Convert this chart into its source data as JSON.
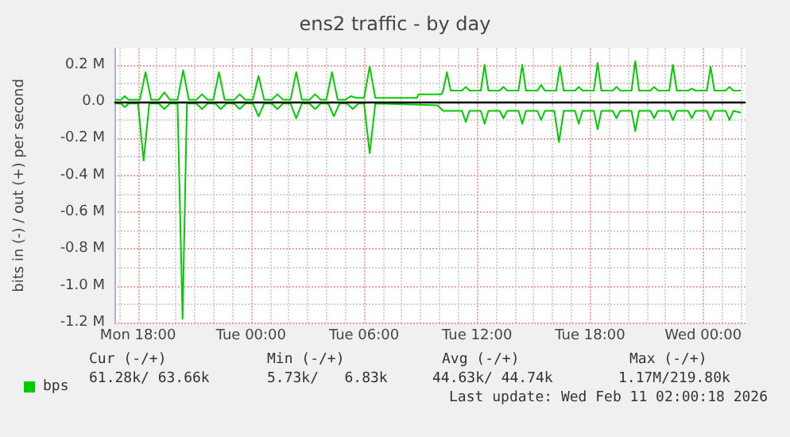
{
  "chart_data": {
    "type": "line",
    "title": "ens2 traffic - by day",
    "ylabel": "bits in (-) / out (+) per second",
    "xlim": [
      "2026-02-09T16:45",
      "2026-02-11T02:15"
    ],
    "ylim": [
      -1.2,
      0.29
    ],
    "xticks": [
      {
        "value": "2026-02-09T17:00",
        "label": null
      },
      {
        "value": "2026-02-09T18:00",
        "label": "Mon 18:00"
      },
      {
        "value": "2026-02-09T19:00",
        "label": null
      },
      {
        "value": "2026-02-09T20:00",
        "label": null
      },
      {
        "value": "2026-02-09T21:00",
        "label": null
      },
      {
        "value": "2026-02-09T22:00",
        "label": null
      },
      {
        "value": "2026-02-09T23:00",
        "label": null
      },
      {
        "value": "2026-02-10T00:00",
        "label": "Tue 00:00"
      },
      {
        "value": "2026-02-10T01:00",
        "label": null
      },
      {
        "value": "2026-02-10T02:00",
        "label": null
      },
      {
        "value": "2026-02-10T03:00",
        "label": null
      },
      {
        "value": "2026-02-10T04:00",
        "label": null
      },
      {
        "value": "2026-02-10T05:00",
        "label": null
      },
      {
        "value": "2026-02-10T06:00",
        "label": "Tue 06:00"
      },
      {
        "value": "2026-02-10T07:00",
        "label": null
      },
      {
        "value": "2026-02-10T08:00",
        "label": null
      },
      {
        "value": "2026-02-10T09:00",
        "label": null
      },
      {
        "value": "2026-02-10T10:00",
        "label": null
      },
      {
        "value": "2026-02-10T11:00",
        "label": null
      },
      {
        "value": "2026-02-10T12:00",
        "label": "Tue 12:00"
      },
      {
        "value": "2026-02-10T13:00",
        "label": null
      },
      {
        "value": "2026-02-10T14:00",
        "label": null
      },
      {
        "value": "2026-02-10T15:00",
        "label": null
      },
      {
        "value": "2026-02-10T16:00",
        "label": null
      },
      {
        "value": "2026-02-10T17:00",
        "label": null
      },
      {
        "value": "2026-02-10T18:00",
        "label": "Tue 18:00"
      },
      {
        "value": "2026-02-10T19:00",
        "label": null
      },
      {
        "value": "2026-02-10T20:00",
        "label": null
      },
      {
        "value": "2026-02-10T21:00",
        "label": null
      },
      {
        "value": "2026-02-10T22:00",
        "label": null
      },
      {
        "value": "2026-02-10T23:00",
        "label": null
      },
      {
        "value": "2026-02-11T00:00",
        "label": "Wed 00:00"
      },
      {
        "value": "2026-02-11T01:00",
        "label": null
      },
      {
        "value": "2026-02-11T02:00",
        "label": null
      }
    ],
    "yticks": [
      {
        "value": -1.2,
        "label": "-1.2 M"
      },
      {
        "value": -1.1,
        "label": null
      },
      {
        "value": -1.0,
        "label": "-1.0 M"
      },
      {
        "value": -0.9,
        "label": null
      },
      {
        "value": -0.8,
        "label": "-0.8 M"
      },
      {
        "value": -0.7,
        "label": null
      },
      {
        "value": -0.6,
        "label": "-0.6 M"
      },
      {
        "value": -0.5,
        "label": null
      },
      {
        "value": -0.4,
        "label": "-0.4 M"
      },
      {
        "value": -0.3,
        "label": null
      },
      {
        "value": -0.2,
        "label": "-0.2 M"
      },
      {
        "value": -0.1,
        "label": null
      },
      {
        "value": 0,
        "label": "0.0"
      },
      {
        "value": 0.1,
        "label": null
      },
      {
        "value": 0.2,
        "label": "0.2 M"
      }
    ],
    "grid": true,
    "legend": "bottom left",
    "marker": "none",
    "line_style": "solid",
    "ref_lines": [
      {
        "axis": "y",
        "value": 0,
        "color": "#000000"
      }
    ],
    "annotations": [
      "Cur (-/+)",
      "Min (-/+)",
      "Avg (-/+)",
      "Max (-/+)",
      "61.28k/ 63.66k",
      "5.73k/   6.83k",
      "44.63k/ 44.74k",
      "1.17M/219.80k",
      "Last update: Wed Feb 11 02:00:18 2026"
    ],
    "series": [
      {
        "name": "bps",
        "color": "#00cc00",
        "x": [
          "2026-02-09T16:48",
          "2026-02-09T17:06",
          "2026-02-09T17:18",
          "2026-02-09T17:30",
          "2026-02-09T18:06",
          "2026-02-09T18:24",
          "2026-02-09T18:42",
          "2026-02-09T19:06",
          "2026-02-09T19:24",
          "2026-02-09T19:42",
          "2026-02-09T20:06",
          "2026-02-09T20:24",
          "2026-02-09T20:42",
          "2026-02-09T21:06",
          "2026-02-09T21:24",
          "2026-02-09T21:42",
          "2026-02-09T22:00",
          "2026-02-09T22:18",
          "2026-02-09T22:36",
          "2026-02-09T23:06",
          "2026-02-09T23:24",
          "2026-02-09T23:42",
          "2026-02-10T00:06",
          "2026-02-10T00:24",
          "2026-02-10T00:42",
          "2026-02-10T01:06",
          "2026-02-10T01:24",
          "2026-02-10T01:42",
          "2026-02-10T02:06",
          "2026-02-10T02:24",
          "2026-02-10T02:42",
          "2026-02-10T03:06",
          "2026-02-10T03:24",
          "2026-02-10T03:42",
          "2026-02-10T04:00",
          "2026-02-10T04:18",
          "2026-02-10T04:36",
          "2026-02-10T05:00",
          "2026-02-10T05:18",
          "2026-02-10T05:36",
          "2026-02-10T06:00",
          "2026-02-10T06:18",
          "2026-02-10T06:36",
          "2026-02-10T08:48",
          "2026-02-10T08:54",
          "2026-02-10T10:06",
          "2026-02-10T10:12",
          "2026-02-10T10:24",
          "2026-02-10T10:36",
          "2026-02-10T11:12",
          "2026-02-10T11:24",
          "2026-02-10T11:36",
          "2026-02-10T12:12",
          "2026-02-10T12:24",
          "2026-02-10T12:36",
          "2026-02-10T13:12",
          "2026-02-10T13:24",
          "2026-02-10T13:36",
          "2026-02-10T14:12",
          "2026-02-10T14:24",
          "2026-02-10T14:36",
          "2026-02-10T15:12",
          "2026-02-10T15:24",
          "2026-02-10T15:36",
          "2026-02-10T16:12",
          "2026-02-10T16:24",
          "2026-02-10T16:36",
          "2026-02-10T17:12",
          "2026-02-10T17:24",
          "2026-02-10T17:36",
          "2026-02-10T18:12",
          "2026-02-10T18:24",
          "2026-02-10T18:36",
          "2026-02-10T19:12",
          "2026-02-10T19:24",
          "2026-02-10T19:36",
          "2026-02-10T20:12",
          "2026-02-10T20:24",
          "2026-02-10T20:36",
          "2026-02-10T21:12",
          "2026-02-10T21:24",
          "2026-02-10T21:36",
          "2026-02-10T22:12",
          "2026-02-10T22:24",
          "2026-02-10T22:36",
          "2026-02-10T23:12",
          "2026-02-10T23:24",
          "2026-02-10T23:36",
          "2026-02-11T00:12",
          "2026-02-11T00:24",
          "2026-02-11T00:36",
          "2026-02-11T01:12",
          "2026-02-11T01:24",
          "2026-02-11T01:36",
          "2026-02-11T02:00"
        ],
        "values": [
          0.01,
          0.01,
          0.03,
          0.01,
          0.01,
          0.16,
          0.01,
          0.01,
          0.05,
          0.01,
          0.01,
          0.17,
          0.01,
          0.01,
          0.04,
          0.01,
          0.01,
          0.16,
          0.01,
          0.01,
          0.04,
          0.01,
          0.01,
          0.14,
          0.01,
          0.01,
          0.04,
          0.01,
          0.01,
          0.16,
          0.01,
          0.01,
          0.04,
          0.01,
          0.01,
          0.16,
          0.01,
          0.01,
          0.03,
          0.02,
          0.02,
          0.19,
          0.02,
          0.02,
          0.04,
          0.04,
          0.06,
          0.16,
          0.06,
          0.06,
          0.08,
          0.06,
          0.06,
          0.2,
          0.06,
          0.06,
          0.08,
          0.06,
          0.06,
          0.2,
          0.06,
          0.06,
          0.09,
          0.06,
          0.06,
          0.19,
          0.06,
          0.06,
          0.08,
          0.06,
          0.06,
          0.21,
          0.06,
          0.06,
          0.08,
          0.06,
          0.06,
          0.22,
          0.06,
          0.06,
          0.08,
          0.06,
          0.06,
          0.2,
          0.06,
          0.06,
          0.07,
          0.06,
          0.06,
          0.19,
          0.06,
          0.06,
          0.08,
          0.06,
          0.06
        ]
      },
      {
        "color": "#00cc00",
        "x": [
          "2026-02-09T16:48",
          "2026-02-09T17:06",
          "2026-02-09T17:18",
          "2026-02-09T17:30",
          "2026-02-09T18:00",
          "2026-02-09T18:18",
          "2026-02-09T18:36",
          "2026-02-09T19:06",
          "2026-02-09T19:24",
          "2026-02-09T19:42",
          "2026-02-09T20:06",
          "2026-02-09T20:22",
          "2026-02-09T20:36",
          "2026-02-09T21:06",
          "2026-02-09T21:24",
          "2026-02-09T21:42",
          "2026-02-09T22:06",
          "2026-02-09T22:24",
          "2026-02-09T22:42",
          "2026-02-09T23:06",
          "2026-02-09T23:24",
          "2026-02-09T23:42",
          "2026-02-10T00:06",
          "2026-02-10T00:24",
          "2026-02-10T00:42",
          "2026-02-10T01:06",
          "2026-02-10T01:24",
          "2026-02-10T01:42",
          "2026-02-10T02:06",
          "2026-02-10T02:24",
          "2026-02-10T02:42",
          "2026-02-10T03:06",
          "2026-02-10T03:24",
          "2026-02-10T03:42",
          "2026-02-10T04:06",
          "2026-02-10T04:24",
          "2026-02-10T04:42",
          "2026-02-10T05:06",
          "2026-02-10T05:24",
          "2026-02-10T05:42",
          "2026-02-10T06:00",
          "2026-02-10T06:18",
          "2026-02-10T06:36",
          "2026-02-10T09:54",
          "2026-02-10T10:12",
          "2026-02-10T11:12",
          "2026-02-10T11:24",
          "2026-02-10T11:36",
          "2026-02-10T12:12",
          "2026-02-10T12:24",
          "2026-02-10T12:36",
          "2026-02-10T13:12",
          "2026-02-10T13:24",
          "2026-02-10T13:36",
          "2026-02-10T14:12",
          "2026-02-10T14:24",
          "2026-02-10T14:36",
          "2026-02-10T15:12",
          "2026-02-10T15:24",
          "2026-02-10T15:36",
          "2026-02-10T16:06",
          "2026-02-10T16:21",
          "2026-02-10T16:36",
          "2026-02-10T17:12",
          "2026-02-10T17:24",
          "2026-02-10T17:36",
          "2026-02-10T18:12",
          "2026-02-10T18:24",
          "2026-02-10T18:36",
          "2026-02-10T19:12",
          "2026-02-10T19:24",
          "2026-02-10T19:36",
          "2026-02-10T20:12",
          "2026-02-10T20:24",
          "2026-02-10T20:36",
          "2026-02-10T21:12",
          "2026-02-10T21:24",
          "2026-02-10T21:36",
          "2026-02-10T22:12",
          "2026-02-10T22:24",
          "2026-02-10T22:36",
          "2026-02-10T23:12",
          "2026-02-10T23:24",
          "2026-02-10T23:36",
          "2026-02-11T00:12",
          "2026-02-11T00:24",
          "2026-02-11T00:36",
          "2026-02-11T01:12",
          "2026-02-11T01:24",
          "2026-02-11T01:36",
          "2026-02-11T02:00"
        ],
        "values": [
          -0.01,
          -0.01,
          -0.03,
          -0.01,
          -0.01,
          -0.32,
          -0.01,
          -0.01,
          -0.04,
          -0.01,
          -0.01,
          -1.18,
          -0.01,
          -0.01,
          -0.04,
          -0.01,
          -0.01,
          -0.04,
          -0.01,
          -0.01,
          -0.04,
          -0.01,
          -0.01,
          -0.08,
          -0.01,
          -0.01,
          -0.04,
          -0.01,
          -0.01,
          -0.09,
          -0.01,
          -0.01,
          -0.04,
          -0.01,
          -0.01,
          -0.08,
          -0.01,
          -0.01,
          -0.04,
          -0.01,
          -0.01,
          -0.28,
          -0.01,
          -0.02,
          -0.05,
          -0.05,
          -0.11,
          -0.05,
          -0.05,
          -0.12,
          -0.05,
          -0.05,
          -0.09,
          -0.05,
          -0.05,
          -0.12,
          -0.05,
          -0.05,
          -0.1,
          -0.05,
          -0.05,
          -0.22,
          -0.05,
          -0.05,
          -0.12,
          -0.05,
          -0.05,
          -0.15,
          -0.05,
          -0.05,
          -0.09,
          -0.05,
          -0.05,
          -0.16,
          -0.05,
          -0.05,
          -0.09,
          -0.05,
          -0.05,
          -0.1,
          -0.05,
          -0.05,
          -0.09,
          -0.05,
          -0.05,
          -0.1,
          -0.05,
          -0.05,
          -0.1,
          -0.05,
          -0.06
        ]
      }
    ]
  }
}
